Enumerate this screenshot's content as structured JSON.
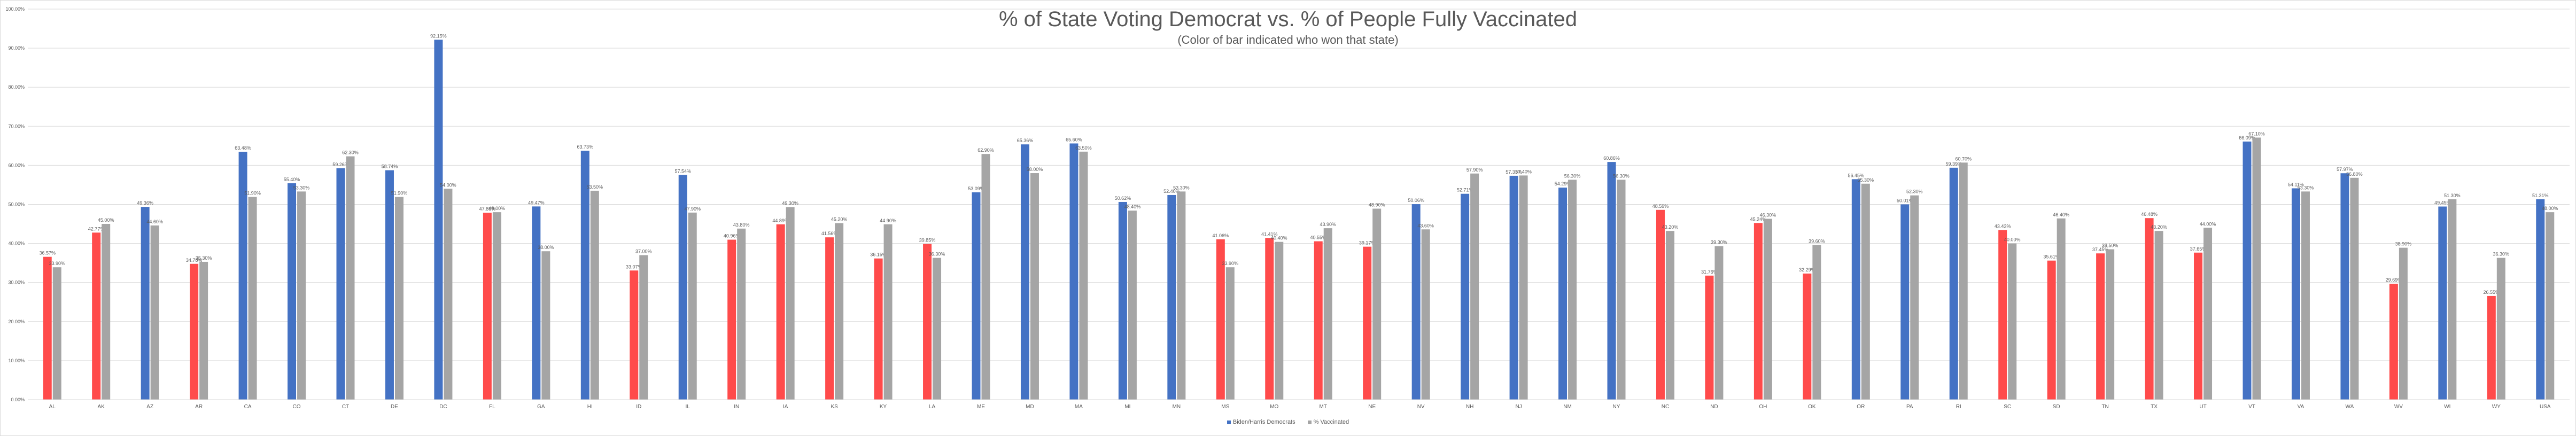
{
  "colors": {
    "biden_blue": "#4472c4",
    "trump_red": "#ff4b4b",
    "vaccinated_gray": "#a5a5a5",
    "grid": "#d9d9d9",
    "text": "#595959"
  },
  "chart_data": {
    "type": "bar",
    "title": "% of State Voting Democrat vs. % of People Fully Vaccinated",
    "subtitle": "(Color of bar indicated who won that state)",
    "xlabel": "",
    "ylabel": "",
    "ylim": [
      0,
      100
    ],
    "y_ticks": [
      "0.00%",
      "10.00%",
      "20.00%",
      "30.00%",
      "40.00%",
      "50.00%",
      "60.00%",
      "70.00%",
      "80.00%",
      "90.00%",
      "100.00%"
    ],
    "grid": true,
    "legend_position": "bottom",
    "categories": [
      "AL",
      "AK",
      "AZ",
      "AR",
      "CA",
      "CO",
      "CT",
      "DE",
      "DC",
      "FL",
      "GA",
      "HI",
      "ID",
      "IL",
      "IN",
      "IA",
      "KS",
      "KY",
      "LA",
      "ME",
      "MD",
      "MA",
      "MI",
      "MN",
      "MS",
      "MO",
      "MT",
      "NE",
      "NV",
      "NH",
      "NJ",
      "NM",
      "NY",
      "NC",
      "ND",
      "OH",
      "OK",
      "OR",
      "PA",
      "RI",
      "SC",
      "SD",
      "TN",
      "TX",
      "UT",
      "VT",
      "VA",
      "WA",
      "WV",
      "WI",
      "WY",
      "USA"
    ],
    "winner": [
      "R",
      "R",
      "D",
      "R",
      "D",
      "D",
      "D",
      "D",
      "D",
      "R",
      "D",
      "D",
      "R",
      "D",
      "R",
      "R",
      "R",
      "R",
      "R",
      "D",
      "D",
      "D",
      "D",
      "D",
      "R",
      "R",
      "R",
      "R",
      "D",
      "D",
      "D",
      "D",
      "D",
      "R",
      "R",
      "R",
      "R",
      "D",
      "D",
      "D",
      "R",
      "R",
      "R",
      "R",
      "R",
      "D",
      "D",
      "D",
      "R",
      "D",
      "R",
      "D"
    ],
    "series": [
      {
        "name": "Biden/Harris Democrats",
        "values": [
          36.57,
          42.77,
          49.36,
          34.78,
          63.48,
          55.4,
          59.26,
          58.74,
          92.15,
          47.86,
          49.47,
          63.73,
          33.07,
          57.54,
          40.96,
          44.89,
          41.56,
          36.15,
          39.85,
          53.09,
          65.36,
          65.6,
          50.62,
          52.4,
          41.06,
          41.41,
          40.55,
          39.17,
          50.06,
          52.71,
          57.33,
          54.29,
          60.86,
          48.59,
          31.76,
          45.24,
          32.29,
          56.45,
          50.01,
          59.39,
          43.43,
          35.61,
          37.45,
          46.48,
          37.65,
          66.09,
          54.11,
          57.97,
          29.69,
          49.45,
          26.55,
          51.31
        ]
      },
      {
        "name": "% Vaccinated",
        "values": [
          33.9,
          45.0,
          44.6,
          35.3,
          51.9,
          53.3,
          62.3,
          51.9,
          54.0,
          48.0,
          38.0,
          53.5,
          37.0,
          47.9,
          43.8,
          49.3,
          45.2,
          44.9,
          36.3,
          62.9,
          58.0,
          63.5,
          48.4,
          53.3,
          33.9,
          40.4,
          43.9,
          48.9,
          43.6,
          57.9,
          57.4,
          56.3,
          56.3,
          43.2,
          39.3,
          46.3,
          39.6,
          55.3,
          52.3,
          60.7,
          40.0,
          46.4,
          38.5,
          43.2,
          44.0,
          67.1,
          53.3,
          56.8,
          38.9,
          51.3,
          36.3,
          48.0
        ]
      }
    ],
    "data_labels": {
      "democrat": [
        "36.57%",
        "42.77%",
        "49.36%",
        "34.78%",
        "63.48%",
        "55.40%",
        "59.26%",
        "58.74%",
        "92.15%",
        "47.86%",
        "49.47%",
        "63.73%",
        "33.07%",
        "57.54%",
        "40.96%",
        "44.89%",
        "41.56%",
        "36.15%",
        "39.85%",
        "53.09%",
        "65.36%",
        "65.60%",
        "50.62%",
        "52.40%",
        "41.06%",
        "41.41%",
        "40.55%",
        "39.17%",
        "50.06%",
        "52.71%",
        "57.33%",
        "54.29%",
        "60.86%",
        "48.59%",
        "31.76%",
        "45.24%",
        "32.29%",
        "56.45%",
        "50.01%",
        "59.39%",
        "43.43%",
        "35.61%",
        "37.45%",
        "46.48%",
        "37.65%",
        "66.09%",
        "54.11%",
        "57.97%",
        "29.69%",
        "49.45%",
        "26.55%",
        "51.31%"
      ],
      "vaccinated": [
        "33.90%",
        "45.00%",
        "44.60%",
        "35.30%",
        "51.90%",
        "53.30%",
        "62.30%",
        "51.90%",
        "54.00%",
        "48.00%",
        "38.00%",
        "53.50%",
        "37.00%",
        "47.90%",
        "43.80%",
        "49.30%",
        "45.20%",
        "44.90%",
        "36.30%",
        "62.90%",
        "58.00%",
        "63.50%",
        "48.40%",
        "53.30%",
        "33.90%",
        "40.40%",
        "43.90%",
        "48.90%",
        "43.60%",
        "57.90%",
        "57.40%",
        "56.30%",
        "56.30%",
        "43.20%",
        "39.30%",
        "46.30%",
        "39.60%",
        "55.30%",
        "52.30%",
        "60.70%",
        "40.00%",
        "46.40%",
        "38.50%",
        "43.20%",
        "44.00%",
        "67.10%",
        "53.30%",
        "56.80%",
        "38.90%",
        "51.30%",
        "36.30%",
        "48.00%"
      ]
    }
  }
}
